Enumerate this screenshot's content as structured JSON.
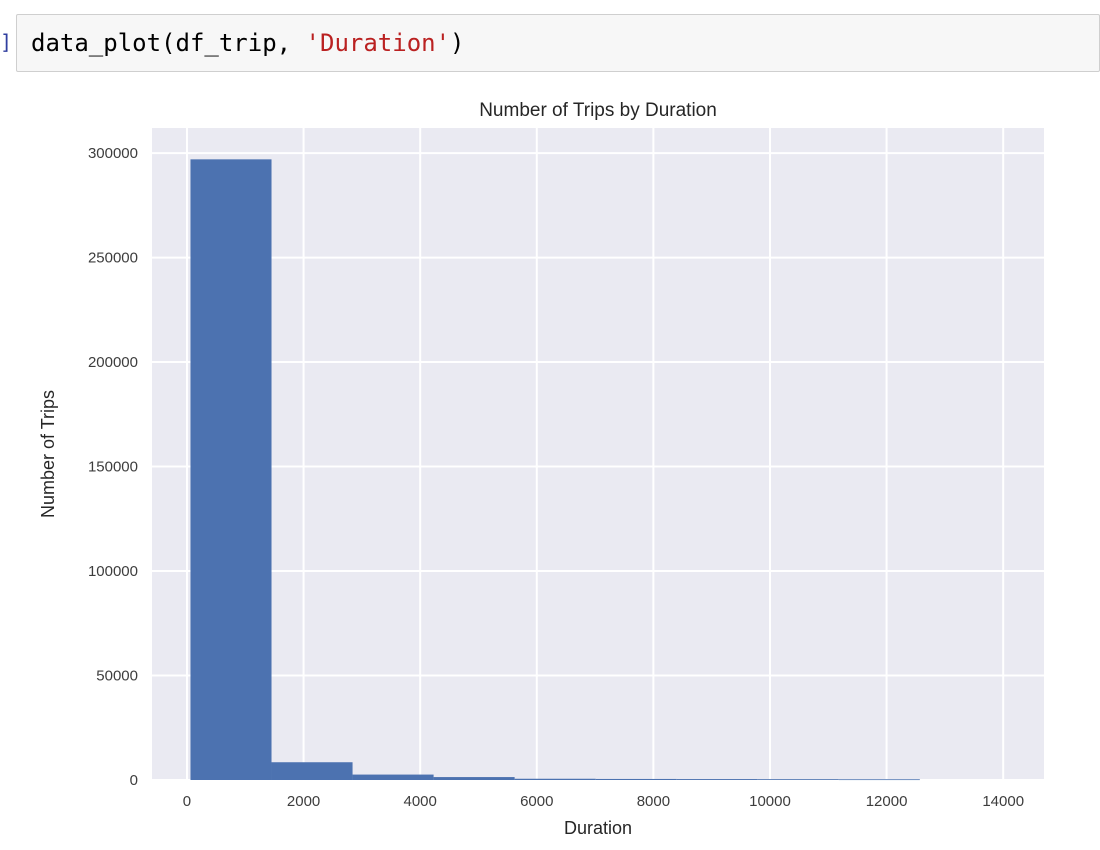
{
  "prompt": "]:",
  "cell": {
    "code_prefix": "data_plot(df_trip, ",
    "code_string": "'Duration'",
    "code_suffix": ")"
  },
  "chart_data": {
    "type": "bar",
    "title": "Number of Trips by Duration",
    "xlabel": "Duration",
    "ylabel": "Number of Trips",
    "xlim": [
      -600,
      14700
    ],
    "ylim": [
      0,
      312000
    ],
    "xticks": [
      0,
      2000,
      4000,
      6000,
      8000,
      10000,
      12000,
      14000
    ],
    "yticks": [
      0,
      50000,
      100000,
      150000,
      200000,
      250000,
      300000
    ],
    "bins": [
      {
        "x0": 60,
        "x1": 1450,
        "value": 297000
      },
      {
        "x0": 1450,
        "x1": 2840,
        "value": 8500
      },
      {
        "x0": 2840,
        "x1": 4230,
        "value": 2600
      },
      {
        "x0": 4230,
        "x1": 5620,
        "value": 1400
      },
      {
        "x0": 5620,
        "x1": 7010,
        "value": 600
      },
      {
        "x0": 7010,
        "x1": 8400,
        "value": 500
      },
      {
        "x0": 8400,
        "x1": 9790,
        "value": 450
      },
      {
        "x0": 9790,
        "x1": 11180,
        "value": 400
      },
      {
        "x0": 11180,
        "x1": 12570,
        "value": 350
      }
    ],
    "grid": true,
    "colors": {
      "bar": "#4c72b0",
      "background": "#eaeaf2",
      "grid": "#ffffff"
    }
  }
}
